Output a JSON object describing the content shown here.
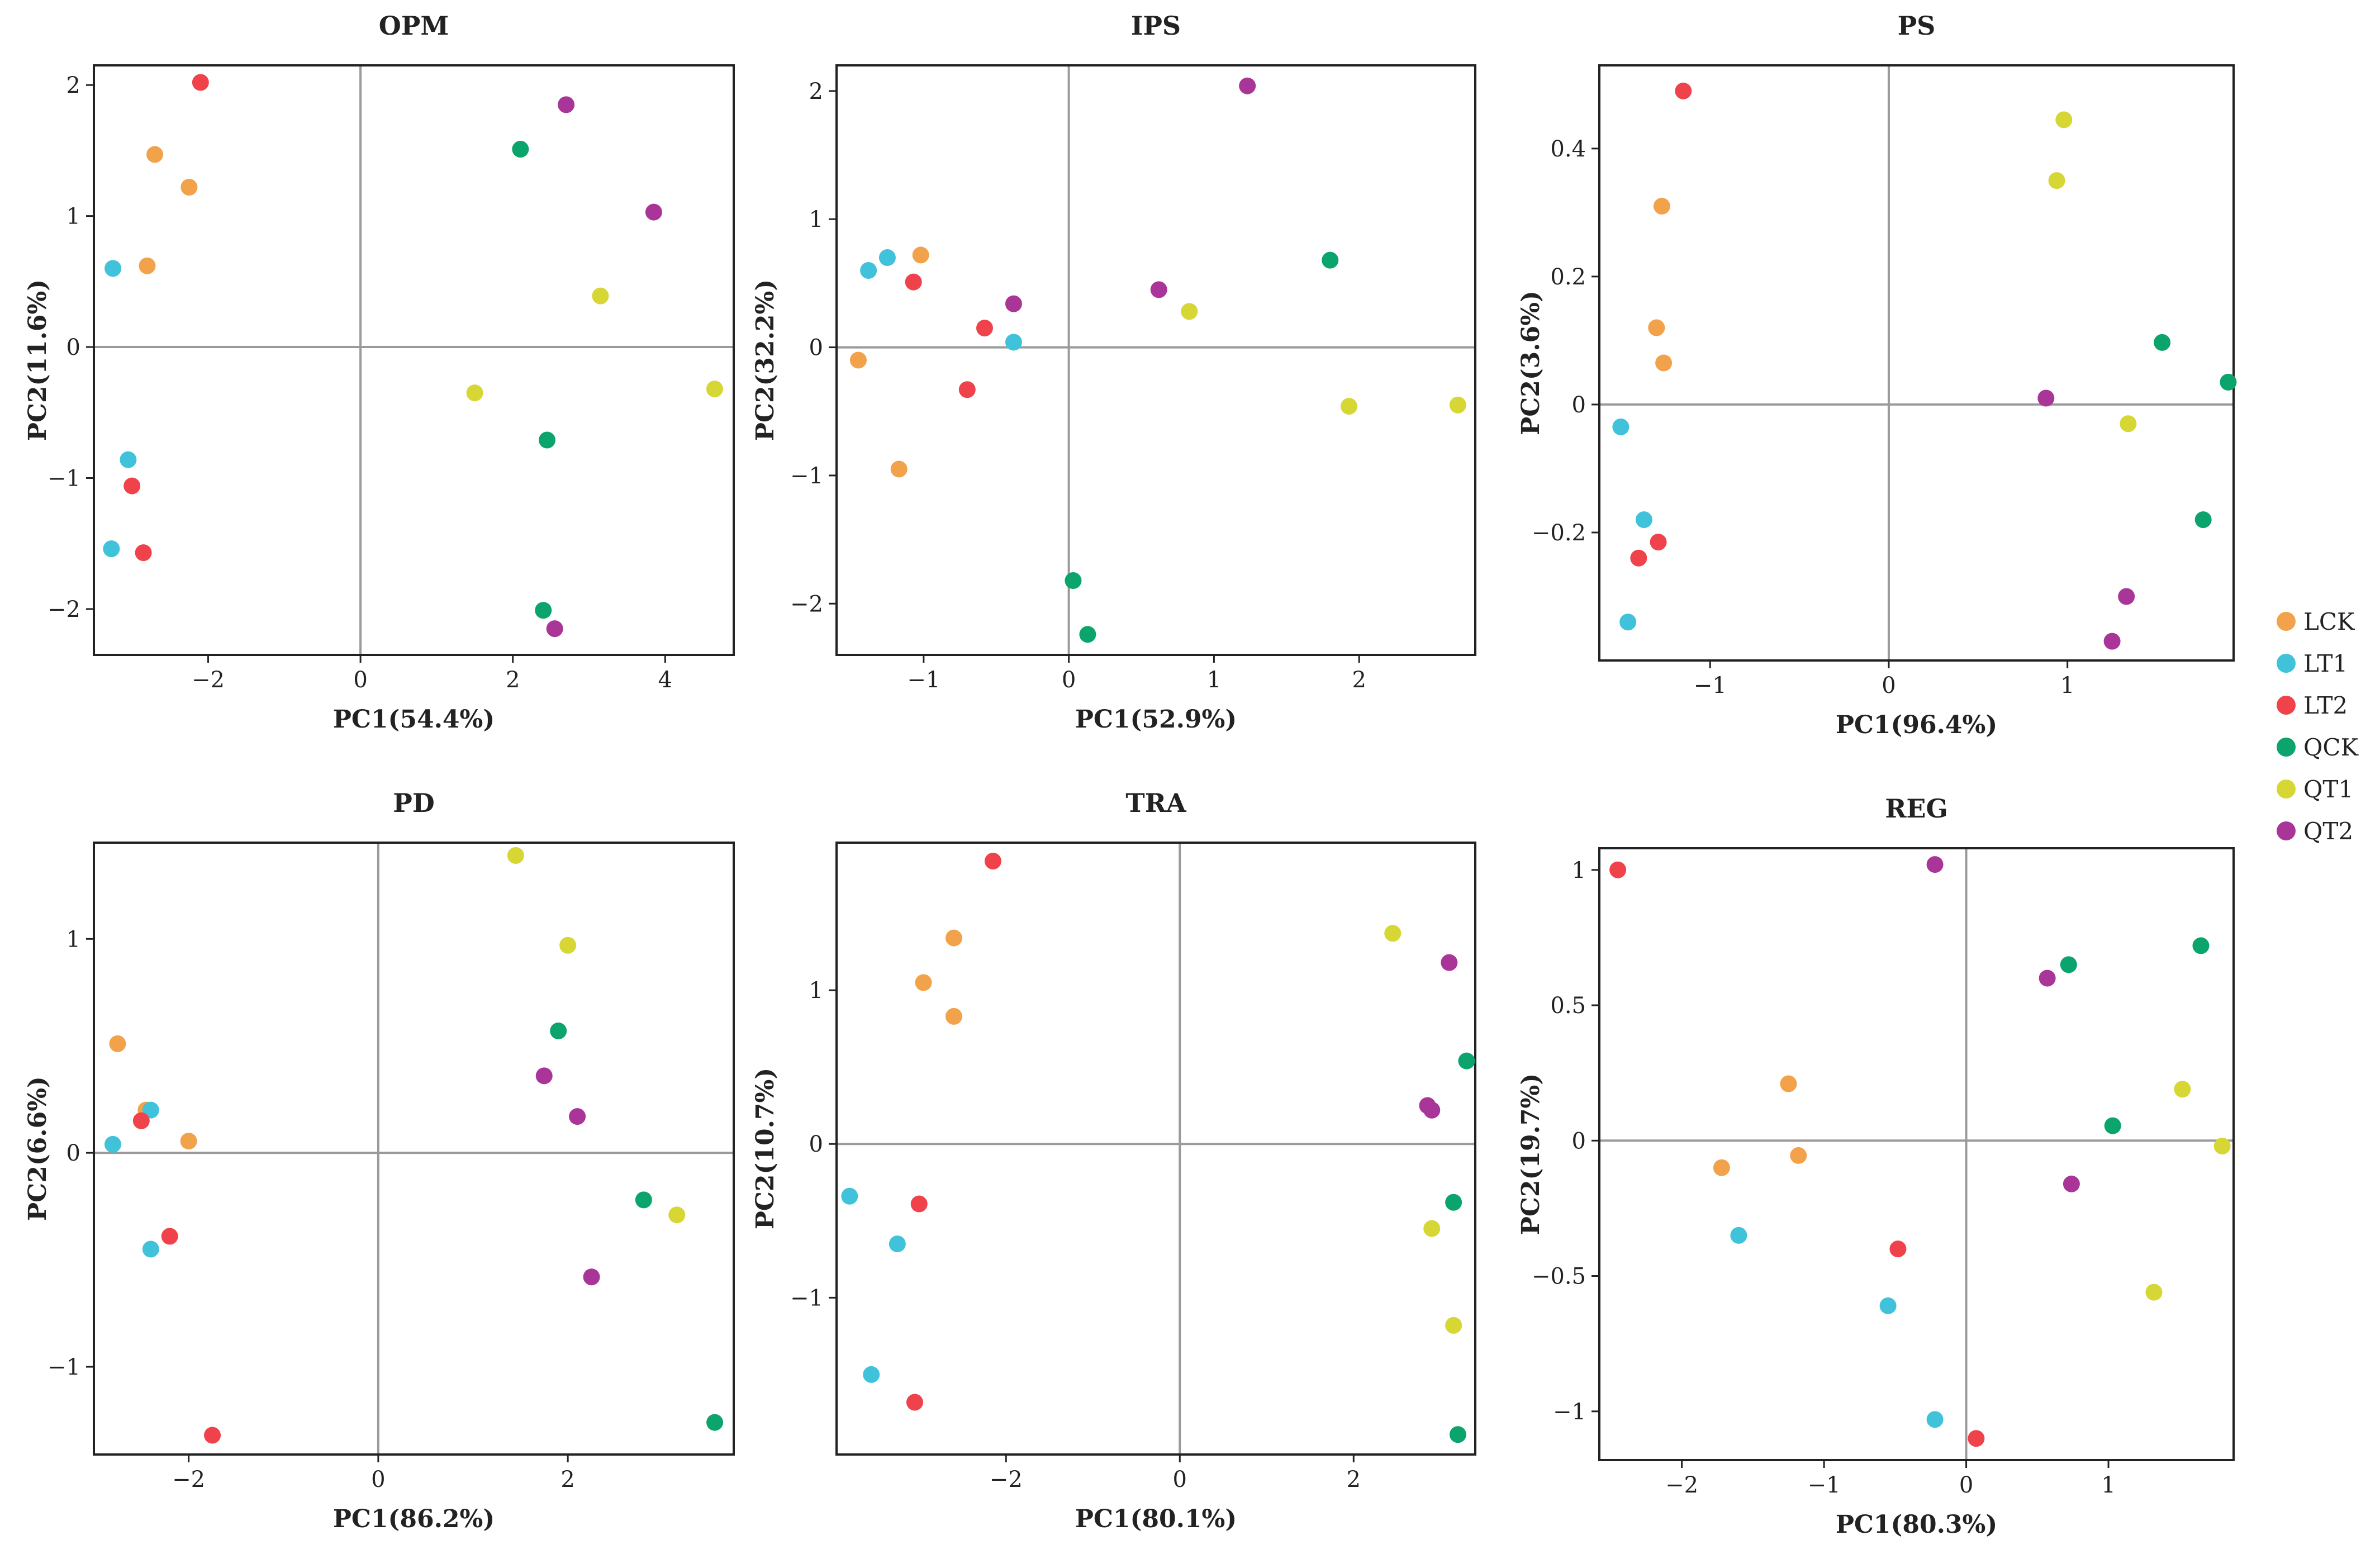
{
  "colors": {
    "LCK": "#f2a24a",
    "LT1": "#3fc2da",
    "LT2": "#f0424a",
    "QCK": "#0aa46c",
    "QT1": "#d6d635",
    "QT2": "#a93598"
  },
  "legend": [
    "LCK",
    "LT1",
    "LT2",
    "QCK",
    "QT1",
    "QT2"
  ],
  "chart_data": [
    {
      "type": "scatter",
      "title": "OPM",
      "xlabel": "PC1(54.4%)",
      "ylabel": "PC2(11.6%)",
      "xlim": [
        -3.5,
        4.9
      ],
      "ylim": [
        -2.35,
        2.15
      ],
      "xticks": [
        -2,
        0,
        2,
        4
      ],
      "yticks": [
        -2,
        -1,
        0,
        1,
        2
      ],
      "series": [
        {
          "name": "LCK",
          "points": [
            [
              -2.7,
              1.47
            ],
            [
              -2.25,
              1.22
            ],
            [
              -2.8,
              0.62
            ]
          ]
        },
        {
          "name": "LT1",
          "points": [
            [
              -3.25,
              0.6
            ],
            [
              -3.05,
              -0.86
            ],
            [
              -3.27,
              -1.54
            ]
          ]
        },
        {
          "name": "LT2",
          "points": [
            [
              -2.1,
              2.02
            ],
            [
              -3.0,
              -1.06
            ],
            [
              -2.85,
              -1.57
            ]
          ]
        },
        {
          "name": "QCK",
          "points": [
            [
              2.1,
              1.51
            ],
            [
              2.45,
              -0.71
            ],
            [
              2.4,
              -2.01
            ]
          ]
        },
        {
          "name": "QT1",
          "points": [
            [
              3.15,
              0.39
            ],
            [
              1.5,
              -0.35
            ],
            [
              4.65,
              -0.32
            ]
          ]
        },
        {
          "name": "QT2",
          "points": [
            [
              2.7,
              1.85
            ],
            [
              3.85,
              1.03
            ],
            [
              2.55,
              -2.15
            ]
          ]
        }
      ]
    },
    {
      "type": "scatter",
      "title": "IPS",
      "xlabel": "PC1(52.9%)",
      "ylabel": "PC2(32.2%)",
      "xlim": [
        -1.6,
        2.8
      ],
      "ylim": [
        -2.4,
        2.2
      ],
      "xticks": [
        -1,
        0,
        1,
        2
      ],
      "yticks": [
        -2,
        -1,
        0,
        1,
        2
      ],
      "series": [
        {
          "name": "LCK",
          "points": [
            [
              -1.02,
              0.72
            ],
            [
              -1.45,
              -0.1
            ],
            [
              -1.17,
              -0.95
            ]
          ]
        },
        {
          "name": "LT1",
          "points": [
            [
              -1.38,
              0.6
            ],
            [
              -1.25,
              0.7
            ],
            [
              -0.38,
              0.04
            ]
          ]
        },
        {
          "name": "LT2",
          "points": [
            [
              -1.07,
              0.51
            ],
            [
              -0.58,
              0.15
            ],
            [
              -0.7,
              -0.33
            ]
          ]
        },
        {
          "name": "QCK",
          "points": [
            [
              1.8,
              0.68
            ],
            [
              0.03,
              -1.82
            ],
            [
              0.13,
              -2.24
            ]
          ]
        },
        {
          "name": "QT1",
          "points": [
            [
              0.83,
              0.28
            ],
            [
              1.93,
              -0.46
            ],
            [
              2.68,
              -0.45
            ]
          ]
        },
        {
          "name": "QT2",
          "points": [
            [
              1.23,
              2.04
            ],
            [
              0.62,
              0.45
            ],
            [
              -0.38,
              0.34
            ]
          ]
        }
      ]
    },
    {
      "type": "scatter",
      "title": "PS",
      "xlabel": "PC1(96.4%)",
      "ylabel": "PC2(3.6%)",
      "xlim": [
        -1.62,
        1.93
      ],
      "ylim": [
        -0.4,
        0.53
      ],
      "xticks": [
        -1,
        0,
        1
      ],
      "yticks": [
        -0.2,
        0,
        0.2,
        0.4
      ],
      "ytickLabels": [
        "−0.2",
        "0",
        "0.2",
        "0.4"
      ],
      "series": [
        {
          "name": "LCK",
          "points": [
            [
              -1.27,
              0.31
            ],
            [
              -1.3,
              0.12
            ],
            [
              -1.26,
              0.065
            ]
          ]
        },
        {
          "name": "LT1",
          "points": [
            [
              -1.5,
              -0.035
            ],
            [
              -1.37,
              -0.18
            ],
            [
              -1.46,
              -0.34
            ]
          ]
        },
        {
          "name": "LT2",
          "points": [
            [
              -1.15,
              0.49
            ],
            [
              -1.29,
              -0.215
            ],
            [
              -1.4,
              -0.24
            ]
          ]
        },
        {
          "name": "QCK",
          "points": [
            [
              1.53,
              0.097
            ],
            [
              1.9,
              0.035
            ],
            [
              1.76,
              -0.18
            ]
          ]
        },
        {
          "name": "QT1",
          "points": [
            [
              0.98,
              0.445
            ],
            [
              0.94,
              0.35
            ],
            [
              1.34,
              -0.03
            ]
          ]
        },
        {
          "name": "QT2",
          "points": [
            [
              0.88,
              0.01
            ],
            [
              1.33,
              -0.3
            ],
            [
              1.25,
              -0.37
            ]
          ]
        }
      ]
    },
    {
      "type": "scatter",
      "title": "PD",
      "xlabel": "PC1(86.2%)",
      "ylabel": "PC2(6.6%)",
      "xlim": [
        -3.0,
        3.75
      ],
      "ylim": [
        -1.41,
        1.45
      ],
      "xticks": [
        -2,
        0,
        2
      ],
      "yticks": [
        -1,
        0,
        1
      ],
      "ytickLabels": [
        "−1",
        "0",
        "1"
      ],
      "series": [
        {
          "name": "LCK",
          "points": [
            [
              -2.75,
              0.51
            ],
            [
              -2.45,
              0.2
            ],
            [
              -2.0,
              0.055
            ]
          ]
        },
        {
          "name": "LT1",
          "points": [
            [
              -2.8,
              0.04
            ],
            [
              -2.4,
              0.2
            ],
            [
              -2.4,
              -0.45
            ]
          ]
        },
        {
          "name": "LT2",
          "points": [
            [
              -2.5,
              0.15
            ],
            [
              -2.2,
              -0.39
            ],
            [
              -1.75,
              -1.32
            ]
          ]
        },
        {
          "name": "QCK",
          "points": [
            [
              1.9,
              0.57
            ],
            [
              2.8,
              -0.22
            ],
            [
              3.55,
              -1.26
            ]
          ]
        },
        {
          "name": "QT1",
          "points": [
            [
              1.45,
              1.39
            ],
            [
              2.0,
              0.97
            ],
            [
              3.15,
              -0.29
            ]
          ]
        },
        {
          "name": "QT2",
          "points": [
            [
              1.75,
              0.36
            ],
            [
              2.1,
              0.17
            ],
            [
              2.25,
              -0.58
            ]
          ]
        }
      ]
    },
    {
      "type": "scatter",
      "title": "TRA",
      "xlabel": "PC1(80.1%)",
      "ylabel": "PC2(10.7%)",
      "xlim": [
        -3.95,
        3.4
      ],
      "ylim": [
        -2.02,
        1.96
      ],
      "xticks": [
        -2,
        0,
        2
      ],
      "yticks": [
        -1,
        0,
        1
      ],
      "ytickLabels": [
        "−1",
        "0",
        "1"
      ],
      "series": [
        {
          "name": "LCK",
          "points": [
            [
              -2.6,
              1.34
            ],
            [
              -2.95,
              1.05
            ],
            [
              -2.6,
              0.83
            ]
          ]
        },
        {
          "name": "LT1",
          "points": [
            [
              -3.8,
              -0.34
            ],
            [
              -3.25,
              -0.65
            ],
            [
              -3.55,
              -1.5
            ]
          ]
        },
        {
          "name": "LT2",
          "points": [
            [
              -2.15,
              1.84
            ],
            [
              -3.0,
              -0.39
            ],
            [
              -3.05,
              -1.68
            ]
          ]
        },
        {
          "name": "QCK",
          "points": [
            [
              3.3,
              0.54
            ],
            [
              3.15,
              -0.38
            ],
            [
              3.2,
              -1.89
            ]
          ]
        },
        {
          "name": "QT1",
          "points": [
            [
              2.45,
              1.37
            ],
            [
              2.9,
              -0.55
            ],
            [
              3.15,
              -1.18
            ]
          ]
        },
        {
          "name": "QT2",
          "points": [
            [
              3.1,
              1.18
            ],
            [
              2.85,
              0.25
            ],
            [
              2.9,
              0.22
            ]
          ]
        }
      ]
    },
    {
      "type": "scatter",
      "title": "REG",
      "xlabel": "PC1(80.3%)",
      "ylabel": "PC2(19.7%)",
      "xlim": [
        -2.58,
        1.88
      ],
      "ylim": [
        -1.18,
        1.08
      ],
      "xticks": [
        -2,
        -1,
        0,
        1
      ],
      "yticks": [
        -1,
        -0.5,
        0,
        0.5,
        1
      ],
      "ytickLabels": [
        "−1",
        "−0.5",
        "0",
        "0.5",
        "1"
      ],
      "series": [
        {
          "name": "LCK",
          "points": [
            [
              -1.25,
              0.21
            ],
            [
              -1.72,
              -0.1
            ],
            [
              -1.18,
              -0.055
            ]
          ]
        },
        {
          "name": "LT1",
          "points": [
            [
              -1.6,
              -0.35
            ],
            [
              -0.55,
              -0.61
            ],
            [
              -0.22,
              -1.03
            ]
          ]
        },
        {
          "name": "LT2",
          "points": [
            [
              -2.45,
              1.0
            ],
            [
              -0.48,
              -0.4
            ],
            [
              0.07,
              -1.1
            ]
          ]
        },
        {
          "name": "QCK",
          "points": [
            [
              1.65,
              0.72
            ],
            [
              0.72,
              0.65
            ],
            [
              1.03,
              0.055
            ]
          ]
        },
        {
          "name": "QT1",
          "points": [
            [
              1.52,
              0.19
            ],
            [
              1.8,
              -0.02
            ],
            [
              1.32,
              -0.56
            ]
          ]
        },
        {
          "name": "QT2",
          "points": [
            [
              -0.22,
              1.02
            ],
            [
              0.57,
              0.6
            ],
            [
              0.74,
              -0.16
            ]
          ]
        }
      ]
    }
  ]
}
